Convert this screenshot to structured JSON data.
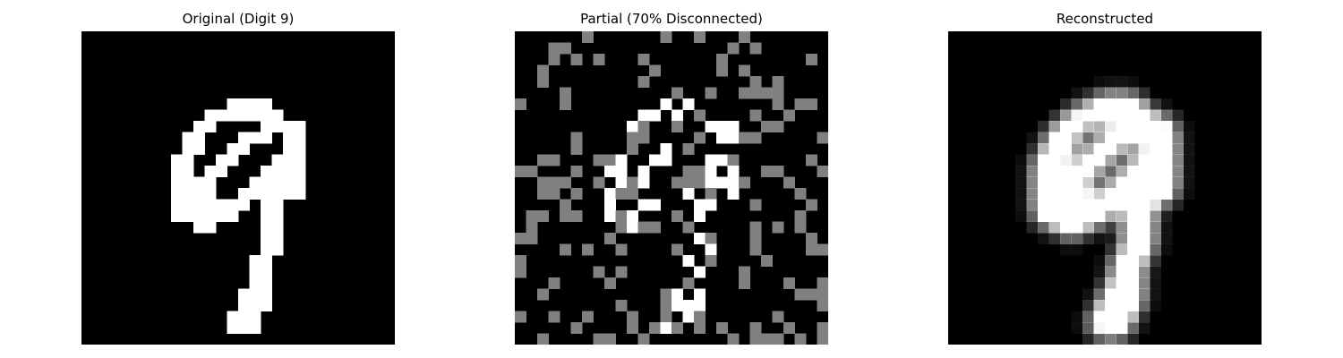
{
  "panels": [
    {
      "id": "original",
      "title": "Original (Digit 9)"
    },
    {
      "id": "partial",
      "title": "Partial (70% Disconnected)"
    },
    {
      "id": "reconstructed",
      "title": "Reconstructed"
    }
  ],
  "image_grid": {
    "rows": 28,
    "cols": 28
  },
  "colors": {
    "background": "#000000",
    "foreground": "#ffffff",
    "masked": "#808080"
  }
}
